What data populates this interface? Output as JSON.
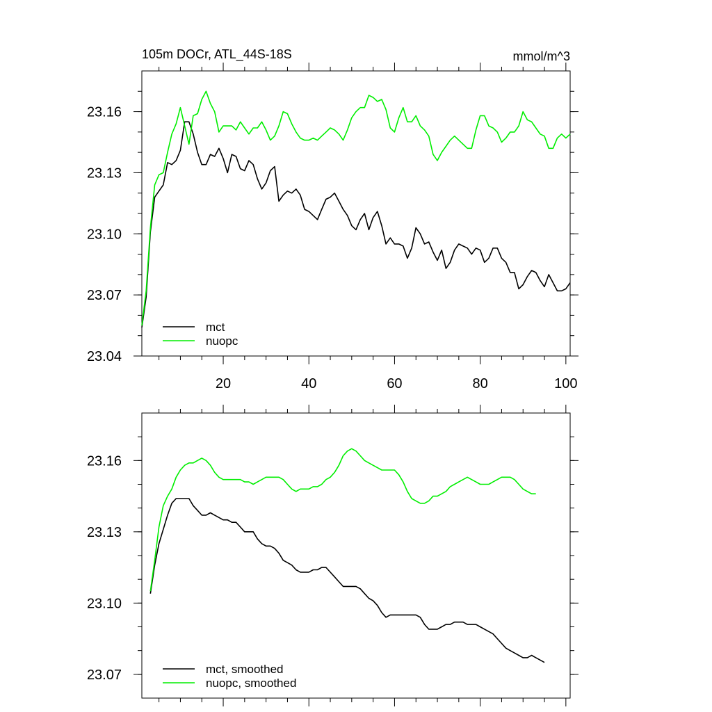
{
  "chart_data": [
    {
      "type": "line",
      "title": "105m DOCr, ATL_44S-18S",
      "units": "mmol/m^3",
      "xlim": [
        1,
        101
      ],
      "ylim": [
        23.04,
        23.18
      ],
      "xticks": [
        20,
        40,
        60,
        80,
        100
      ],
      "xtick_labels": [
        "20",
        "40",
        "60",
        "80",
        "100"
      ],
      "yticks": [
        23.04,
        23.07,
        23.1,
        23.13,
        23.16
      ],
      "ytick_labels": [
        "23.04",
        "23.07",
        "23.10",
        "23.13",
        "23.16"
      ],
      "legend_position": "bottom-left",
      "series": [
        {
          "name": "mct",
          "color": "#000000",
          "x_start": 1,
          "values": [
            23.054,
            23.069,
            23.101,
            23.118,
            23.121,
            23.124,
            23.135,
            23.134,
            23.136,
            23.141,
            23.155,
            23.155,
            23.149,
            23.14,
            23.134,
            23.134,
            23.139,
            23.138,
            23.142,
            23.137,
            23.13,
            23.139,
            23.138,
            23.132,
            23.131,
            23.136,
            23.134,
            23.127,
            23.122,
            23.125,
            23.131,
            23.133,
            23.116,
            23.119,
            23.121,
            23.12,
            23.122,
            23.119,
            23.112,
            23.111,
            23.109,
            23.107,
            23.112,
            23.117,
            23.118,
            23.12,
            23.116,
            23.112,
            23.109,
            23.104,
            23.102,
            23.107,
            23.11,
            23.102,
            23.108,
            23.111,
            23.104,
            23.095,
            23.098,
            23.095,
            23.095,
            23.094,
            23.088,
            23.093,
            23.103,
            23.1,
            23.095,
            23.096,
            23.091,
            23.087,
            23.092,
            23.083,
            23.086,
            23.092,
            23.095,
            23.094,
            23.093,
            23.09,
            23.093,
            23.092,
            23.086,
            23.088,
            23.093,
            23.093,
            23.088,
            23.086,
            23.081,
            23.081,
            23.073,
            23.075,
            23.079,
            23.082,
            23.081,
            23.077,
            23.074,
            23.08,
            23.076,
            23.072,
            23.072,
            23.073,
            23.076
          ]
        },
        {
          "name": "nuopc",
          "color": "#00ee00",
          "x_start": 1,
          "values": [
            23.055,
            23.072,
            23.103,
            23.124,
            23.129,
            23.13,
            23.14,
            23.149,
            23.154,
            23.162,
            23.153,
            23.144,
            23.158,
            23.159,
            23.166,
            23.17,
            23.164,
            23.16,
            23.15,
            23.153,
            23.153,
            23.153,
            23.151,
            23.155,
            23.152,
            23.149,
            23.152,
            23.152,
            23.155,
            23.151,
            23.146,
            23.148,
            23.153,
            23.16,
            23.159,
            23.154,
            23.15,
            23.147,
            23.146,
            23.146,
            23.147,
            23.146,
            23.148,
            23.15,
            23.152,
            23.151,
            23.149,
            23.146,
            23.151,
            23.157,
            23.16,
            23.162,
            23.162,
            23.168,
            23.167,
            23.165,
            23.166,
            23.161,
            23.152,
            23.15,
            23.157,
            23.162,
            23.155,
            23.155,
            23.158,
            23.153,
            23.151,
            23.148,
            23.139,
            23.136,
            23.14,
            23.143,
            23.146,
            23.148,
            23.146,
            23.144,
            23.142,
            23.142,
            23.151,
            23.158,
            23.158,
            23.153,
            23.152,
            23.15,
            23.145,
            23.147,
            23.15,
            23.15,
            23.153,
            23.16,
            23.156,
            23.155,
            23.152,
            23.149,
            23.148,
            23.142,
            23.142,
            23.147,
            23.149,
            23.147,
            23.149
          ]
        }
      ]
    },
    {
      "type": "line",
      "title": "",
      "xlim": [
        1,
        101
      ],
      "ylim": [
        23.06,
        23.18
      ],
      "xticks": [
        20,
        40,
        60,
        80,
        100
      ],
      "xtick_labels": [
        "",
        "",
        "",
        "",
        ""
      ],
      "yticks": [
        23.07,
        23.1,
        23.13,
        23.16
      ],
      "ytick_labels": [
        "23.07",
        "23.10",
        "23.13",
        "23.16"
      ],
      "legend_position": "bottom-left",
      "series": [
        {
          "name": "mct, smoothed",
          "color": "#000000",
          "x_start": 3,
          "values": [
            23.104,
            23.116,
            23.125,
            23.131,
            23.137,
            23.142,
            23.144,
            23.144,
            23.144,
            23.144,
            23.141,
            23.139,
            23.137,
            23.137,
            23.138,
            23.137,
            23.136,
            23.135,
            23.135,
            23.134,
            23.134,
            23.132,
            23.13,
            23.13,
            23.13,
            23.127,
            23.125,
            23.124,
            23.124,
            23.123,
            23.121,
            23.118,
            23.117,
            23.116,
            23.114,
            23.113,
            23.113,
            23.113,
            23.114,
            23.114,
            23.115,
            23.115,
            23.113,
            23.111,
            23.109,
            23.107,
            23.107,
            23.107,
            23.107,
            23.106,
            23.104,
            23.102,
            23.101,
            23.099,
            23.096,
            23.094,
            23.095,
            23.095,
            23.095,
            23.095,
            23.095,
            23.095,
            23.095,
            23.094,
            23.091,
            23.089,
            23.089,
            23.089,
            23.09,
            23.091,
            23.091,
            23.092,
            23.092,
            23.092,
            23.091,
            23.091,
            23.091,
            23.09,
            23.089,
            23.088,
            23.087,
            23.085,
            23.083,
            23.081,
            23.08,
            23.079,
            23.078,
            23.077,
            23.077,
            23.078,
            23.077,
            23.076,
            23.075
          ]
        },
        {
          "name": "nuopc, smoothed",
          "color": "#00ee00",
          "x_start": 3,
          "values": [
            23.105,
            23.118,
            23.132,
            23.141,
            23.145,
            23.148,
            23.153,
            23.156,
            23.158,
            23.159,
            23.159,
            23.16,
            23.161,
            23.16,
            23.158,
            23.155,
            23.153,
            23.152,
            23.152,
            23.152,
            23.152,
            23.152,
            23.151,
            23.151,
            23.15,
            23.151,
            23.152,
            23.153,
            23.153,
            23.153,
            23.153,
            23.152,
            23.15,
            23.148,
            23.147,
            23.148,
            23.148,
            23.148,
            23.149,
            23.149,
            23.15,
            23.152,
            23.153,
            23.155,
            23.158,
            23.162,
            23.164,
            23.165,
            23.164,
            23.162,
            23.16,
            23.159,
            23.158,
            23.157,
            23.156,
            23.156,
            23.156,
            23.156,
            23.154,
            23.151,
            23.147,
            23.144,
            23.143,
            23.142,
            23.142,
            23.143,
            23.145,
            23.145,
            23.146,
            23.147,
            23.149,
            23.15,
            23.151,
            23.152,
            23.153,
            23.152,
            23.151,
            23.15,
            23.15,
            23.15,
            23.151,
            23.152,
            23.153,
            23.153,
            23.153,
            23.152,
            23.15,
            23.148,
            23.147,
            23.146,
            23.146
          ]
        }
      ]
    }
  ]
}
